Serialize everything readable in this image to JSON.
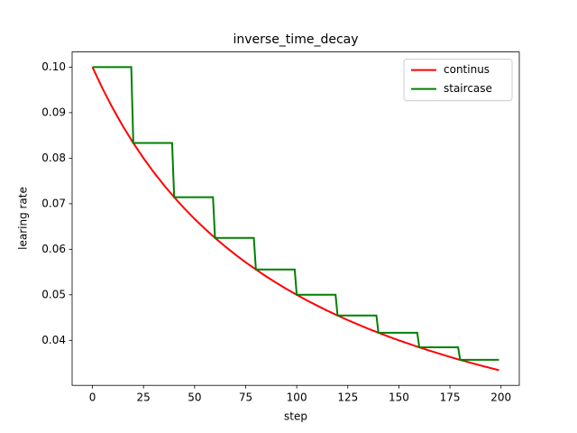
{
  "chart_data": {
    "type": "line",
    "title": "inverse_time_decay",
    "x_label": "step",
    "y_label": "learing rate",
    "xlim": [
      -9.95,
      208.95
    ],
    "ylim": [
      0.03011,
      0.10333
    ],
    "xticks": [
      0,
      25,
      50,
      75,
      100,
      125,
      150,
      175,
      200
    ],
    "yticks": [
      0.04,
      0.05,
      0.06,
      0.07,
      0.08,
      0.09,
      {
        "value": 0.1,
        "label": "0.10"
      }
    ],
    "grid": false,
    "legend": "upper-right",
    "series": [
      {
        "name": "continus",
        "color": "#ff0000",
        "x": [
          0,
          5,
          10,
          15,
          20,
          25,
          30,
          35,
          40,
          45,
          50,
          55,
          60,
          65,
          70,
          75,
          80,
          85,
          90,
          95,
          100,
          105,
          110,
          115,
          120,
          125,
          130,
          135,
          140,
          145,
          150,
          155,
          160,
          165,
          170,
          175,
          180,
          185,
          190,
          195,
          199
        ],
        "values": [
          0.1,
          0.09524,
          0.09091,
          0.08696,
          0.08333,
          0.08,
          0.07692,
          0.07407,
          0.07143,
          0.06897,
          0.06667,
          0.06452,
          0.0625,
          0.06061,
          0.05882,
          0.05714,
          0.05556,
          0.05405,
          0.05263,
          0.05128,
          0.05,
          0.04878,
          0.04762,
          0.04651,
          0.04545,
          0.04444,
          0.04348,
          0.04255,
          0.04167,
          0.04082,
          0.04,
          0.03922,
          0.03846,
          0.03774,
          0.03704,
          0.03636,
          0.03571,
          0.03509,
          0.03448,
          0.0339,
          0.03344
        ]
      },
      {
        "name": "staircase",
        "color": "#008000",
        "x": [
          0,
          19,
          20,
          39,
          40,
          59,
          60,
          79,
          80,
          99,
          100,
          119,
          120,
          139,
          140,
          159,
          160,
          179,
          180,
          199
        ],
        "values": [
          0.1,
          0.1,
          0.08333,
          0.08333,
          0.07143,
          0.07143,
          0.0625,
          0.0625,
          0.05556,
          0.05556,
          0.05,
          0.05,
          0.04545,
          0.04545,
          0.04167,
          0.04167,
          0.03846,
          0.03846,
          0.03571,
          0.03571
        ]
      }
    ]
  }
}
